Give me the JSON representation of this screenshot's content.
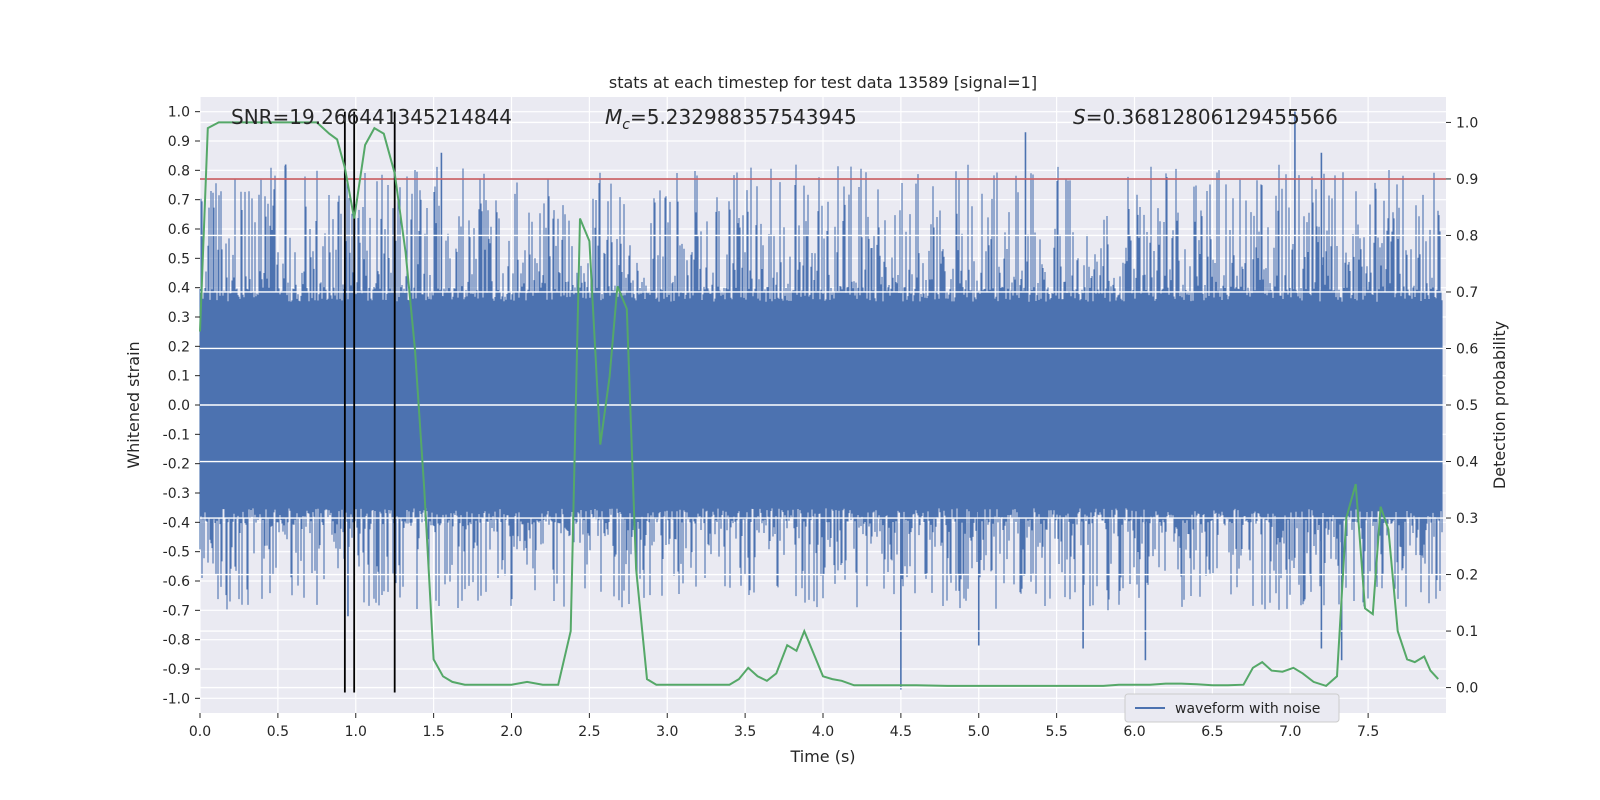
{
  "chart_data": {
    "type": "line",
    "title": "stats at each timestep for test data 13589 [signal=1]",
    "xlabel": "Time (s)",
    "ylabel_left": "Whitened strain",
    "ylabel_right": "Detection probability",
    "xlim": [
      0.0,
      8.0
    ],
    "ylim_left": [
      -1.05,
      1.05
    ],
    "ylim_right": [
      -0.045,
      1.045
    ],
    "x_ticks": [
      "0.0",
      "0.5",
      "1.0",
      "1.5",
      "2.0",
      "2.5",
      "3.0",
      "3.5",
      "4.0",
      "4.5",
      "5.0",
      "5.5",
      "6.0",
      "6.5",
      "7.0",
      "7.5"
    ],
    "y_ticks_left": [
      "1.0",
      "0.9",
      "0.8",
      "0.7",
      "0.6",
      "0.5",
      "0.4",
      "0.3",
      "0.2",
      "0.1",
      "0.0",
      "-0.1",
      "-0.2",
      "-0.3",
      "-0.4",
      "-0.5",
      "-0.6",
      "-0.7",
      "-0.8",
      "-0.9",
      "-1.0"
    ],
    "y_ticks_right": [
      "1.0",
      "0.9",
      "0.8",
      "0.7",
      "0.6",
      "0.5",
      "0.4",
      "0.3",
      "0.2",
      "0.1",
      "0.0"
    ],
    "grid": true,
    "legend": {
      "position": "bottom-right",
      "label": "waveform with noise"
    },
    "annotations": {
      "snr": "SNR=19.266441345214844",
      "mc_symbol": "M",
      "mc_sub": "c",
      "mc_value": "=5.232988357543945",
      "s_symbol": "S",
      "s_value": "=0.36812806129455566"
    },
    "threshold": {
      "value": 0.9,
      "axis": "right",
      "color": "#c44e52"
    },
    "vertical_markers": {
      "x": [
        0.93,
        0.99,
        1.25
      ],
      "y_range": [
        -0.98,
        1.0
      ],
      "color": "#000000"
    },
    "waveform": {
      "name": "waveform with noise",
      "color": "#4c72b0",
      "core_amplitude": 0.4,
      "spikes": [
        {
          "x": 0.55,
          "y": 0.82
        },
        {
          "x": 1.55,
          "y": 0.86
        },
        {
          "x": 5.3,
          "y": 0.93
        },
        {
          "x": 7.03,
          "y": 1.0
        },
        {
          "x": 7.2,
          "y": 0.86
        },
        {
          "x": 4.5,
          "y": -0.97
        },
        {
          "x": 6.07,
          "y": -0.87
        },
        {
          "x": 7.33,
          "y": -0.87
        },
        {
          "x": 5.0,
          "y": -0.82
        },
        {
          "x": 5.67,
          "y": -0.83
        },
        {
          "x": 7.2,
          "y": -0.83
        },
        {
          "x": 0.95,
          "y": -0.72
        }
      ]
    },
    "probability": {
      "color": "#55a868",
      "x": [
        0.0,
        0.05,
        0.12,
        0.2,
        0.3,
        0.45,
        0.6,
        0.75,
        0.83,
        0.88,
        0.93,
        0.99,
        1.06,
        1.12,
        1.18,
        1.25,
        1.32,
        1.38,
        1.44,
        1.5,
        1.56,
        1.62,
        1.7,
        1.8,
        1.9,
        2.0,
        2.1,
        2.2,
        2.3,
        2.38,
        2.44,
        2.5,
        2.57,
        2.63,
        2.68,
        2.74,
        2.8,
        2.87,
        2.93,
        3.0,
        3.1,
        3.2,
        3.3,
        3.4,
        3.46,
        3.52,
        3.58,
        3.64,
        3.7,
        3.77,
        3.83,
        3.88,
        3.94,
        4.0,
        4.06,
        4.12,
        4.2,
        4.3,
        4.4,
        4.5,
        4.6,
        4.8,
        5.0,
        5.2,
        5.4,
        5.6,
        5.8,
        5.9,
        6.0,
        6.1,
        6.2,
        6.3,
        6.4,
        6.5,
        6.6,
        6.7,
        6.76,
        6.82,
        6.88,
        6.95,
        7.02,
        7.08,
        7.15,
        7.23,
        7.3,
        7.36,
        7.42,
        7.48,
        7.53,
        7.58,
        7.63,
        7.69,
        7.75,
        7.8,
        7.86,
        7.9,
        7.95
      ],
      "y": [
        0.63,
        0.99,
        1.0,
        1.0,
        1.0,
        1.0,
        1.0,
        1.0,
        0.98,
        0.97,
        0.92,
        0.83,
        0.96,
        0.99,
        0.98,
        0.91,
        0.77,
        0.6,
        0.35,
        0.05,
        0.02,
        0.01,
        0.005,
        0.005,
        0.005,
        0.005,
        0.01,
        0.005,
        0.005,
        0.1,
        0.83,
        0.79,
        0.43,
        0.55,
        0.71,
        0.67,
        0.21,
        0.015,
        0.005,
        0.005,
        0.005,
        0.005,
        0.005,
        0.005,
        0.015,
        0.035,
        0.02,
        0.012,
        0.025,
        0.075,
        0.065,
        0.1,
        0.06,
        0.02,
        0.015,
        0.012,
        0.004,
        0.004,
        0.004,
        0.004,
        0.004,
        0.003,
        0.003,
        0.003,
        0.003,
        0.003,
        0.003,
        0.005,
        0.005,
        0.005,
        0.007,
        0.007,
        0.006,
        0.004,
        0.004,
        0.005,
        0.035,
        0.045,
        0.03,
        0.028,
        0.035,
        0.025,
        0.01,
        0.003,
        0.02,
        0.3,
        0.36,
        0.14,
        0.13,
        0.32,
        0.28,
        0.1,
        0.05,
        0.045,
        0.055,
        0.03,
        0.015
      ]
    }
  }
}
